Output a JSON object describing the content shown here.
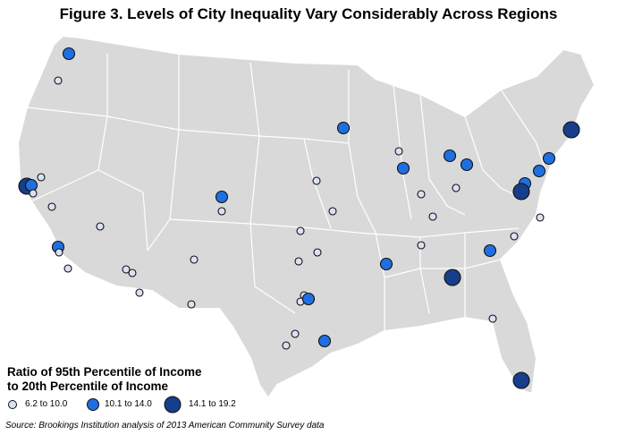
{
  "title": "Figure 3. Levels of City Inequality Vary Considerably Across Regions",
  "legend": {
    "title_line1": "Ratio of 95th Percentile of Income",
    "title_line2": "to 20th Percentile of Income",
    "items": [
      {
        "label": "6.2 to 10.0",
        "color": "#d9e1f2",
        "level": 1
      },
      {
        "label": "10.1 to 14.0",
        "color": "#1f6fe0",
        "level": 2
      },
      {
        "label": "14.1 to 19.2",
        "color": "#163e8a",
        "level": 3
      }
    ]
  },
  "source": "Source: Brookings Institution analysis of 2013 American Community Survey data",
  "colors": {
    "land": "#d9d9d9",
    "state_border": "#ffffff",
    "background": "#ffffff"
  }
}
